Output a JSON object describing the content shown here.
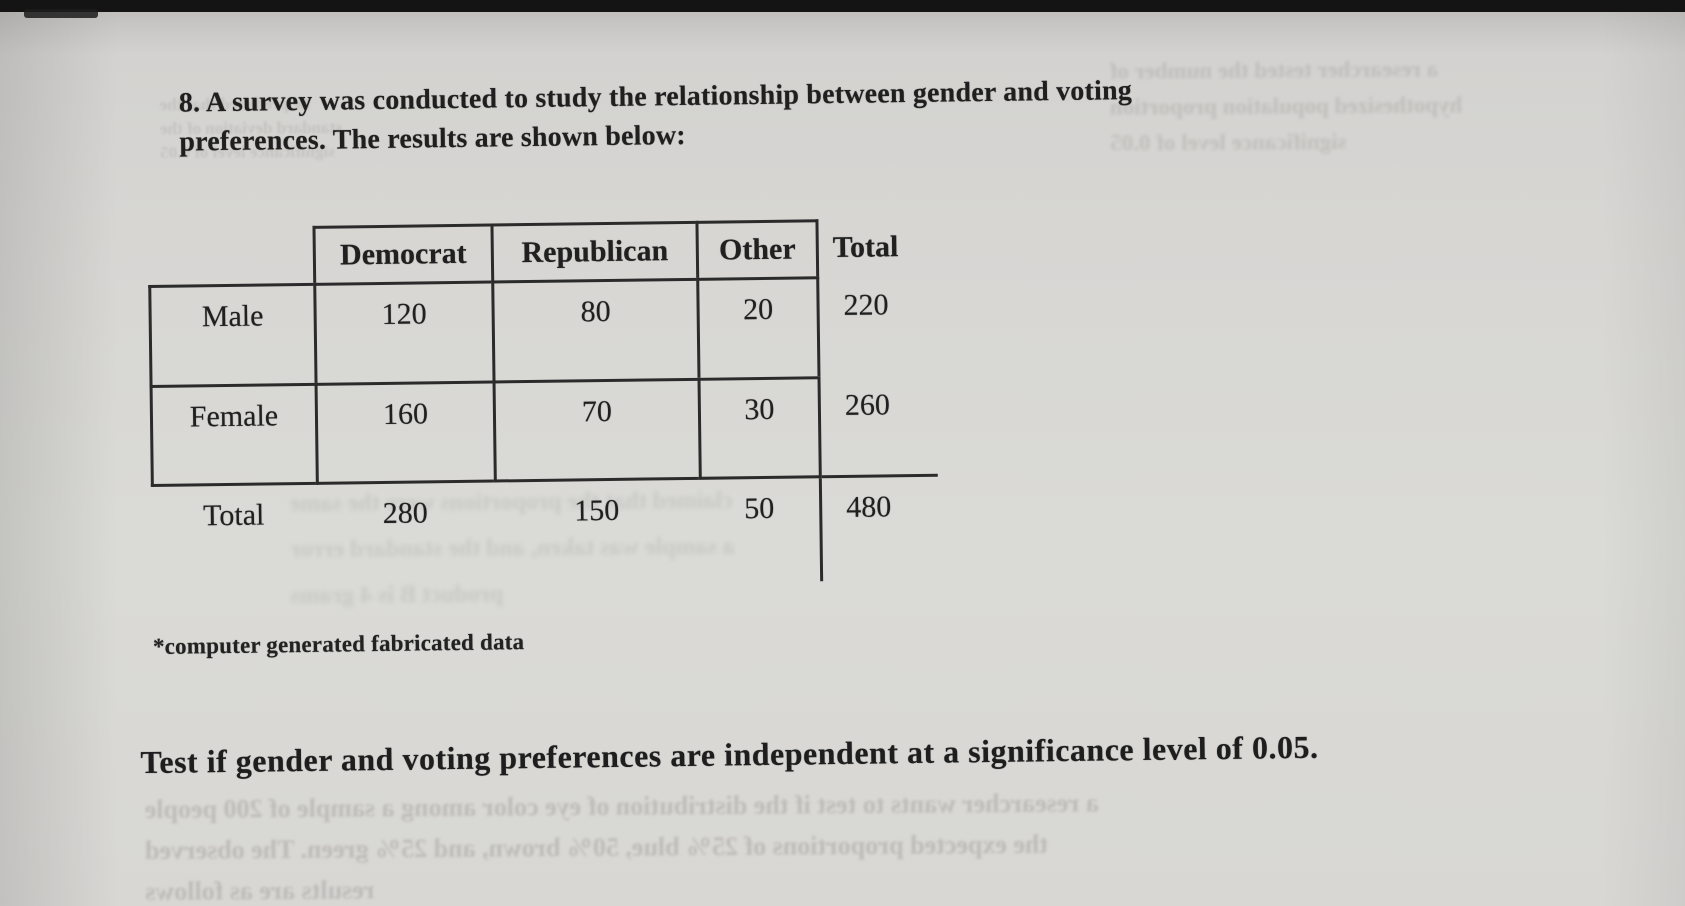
{
  "document": {
    "problem_line1": "8.   A survey was conducted to study the relationship between gender and voting",
    "problem_line2": "preferences. The results are shown below:",
    "footnote": "*computer generated fabricated data",
    "question": "Test if gender and voting preferences are independent at a significance level of 0.05."
  },
  "chart_data": {
    "type": "table",
    "title": "Gender vs voting preference contingency table",
    "columns": [
      "Democrat",
      "Republican",
      "Other",
      "Total"
    ],
    "rows": [
      {
        "label": "Male",
        "values": [
          120,
          80,
          20,
          220
        ]
      },
      {
        "label": "Female",
        "values": [
          160,
          70,
          30,
          260
        ]
      },
      {
        "label": "Total",
        "values": [
          280,
          150,
          50,
          480
        ]
      }
    ]
  },
  "bleedthrough": {
    "top_left": [
      "he predicted that the",
      "standard deviation of the",
      "significance level of 0.05"
    ],
    "top_right": [
      "a researcher tested the number of",
      "hypothesized population proportion",
      "significance level of 0.05"
    ],
    "middle": [
      "claimed that the proportions were the same",
      "a sample was taken, and the standard error",
      "product B is 4 grams"
    ],
    "bottom": [
      "a researcher wants to test if the distribution of eye color among a sample of 200 people",
      "the expected proportions of 25% blue, 50% brown, and 25% green. The observed",
      "results are as follows"
    ]
  },
  "colors": {
    "paper": "#d7d6d3",
    "ink": "#1f1f1f",
    "table_border": "#2b2b2b"
  }
}
